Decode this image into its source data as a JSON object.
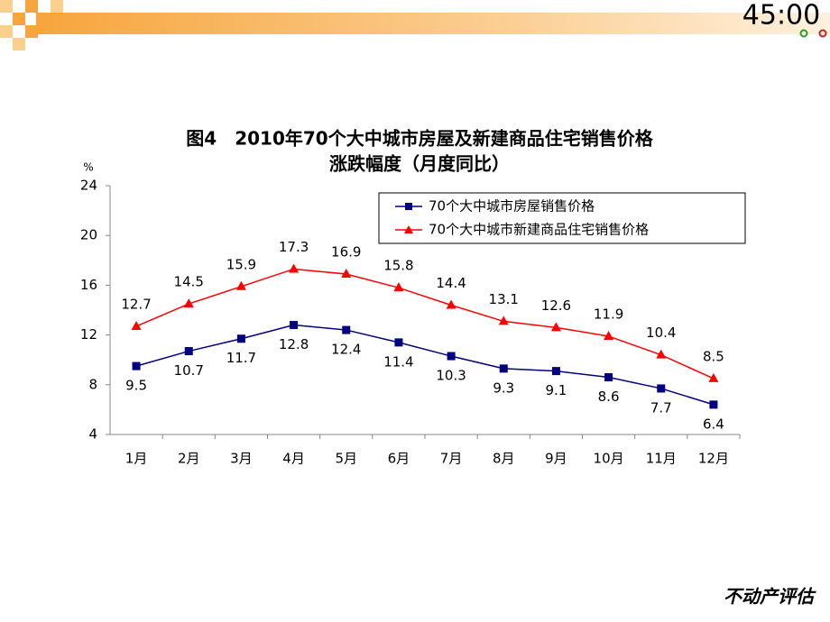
{
  "slide": {
    "timer": "45:00",
    "footer": "不动产评估"
  },
  "chart_data": {
    "type": "line",
    "title": "图4　2010年70个大中城市房屋及新建商品住宅销售价格",
    "subtitle": "涨跌幅度（月度同比）",
    "y_label": "%",
    "categories": [
      "1月",
      "2月",
      "3月",
      "4月",
      "5月",
      "6月",
      "7月",
      "8月",
      "9月",
      "10月",
      "11月",
      "12月"
    ],
    "series": [
      {
        "name": "70个大中城市房屋销售价格",
        "color": "#000080",
        "marker": "square",
        "label_position": "below",
        "values": [
          9.5,
          10.7,
          11.7,
          12.8,
          12.4,
          11.4,
          10.3,
          9.3,
          9.1,
          8.6,
          7.7,
          6.4
        ]
      },
      {
        "name": "70个大中城市新建商品住宅销售价格",
        "color": "#ff0000",
        "marker": "triangle",
        "label_position": "above",
        "values": [
          12.7,
          14.5,
          15.9,
          17.3,
          16.9,
          15.8,
          14.4,
          13.1,
          12.6,
          11.9,
          10.4,
          8.5
        ]
      }
    ],
    "ylim": [
      4,
      24
    ],
    "yticks": [
      4,
      8,
      12,
      16,
      20,
      24
    ],
    "grid": false,
    "legend": "upper right"
  }
}
